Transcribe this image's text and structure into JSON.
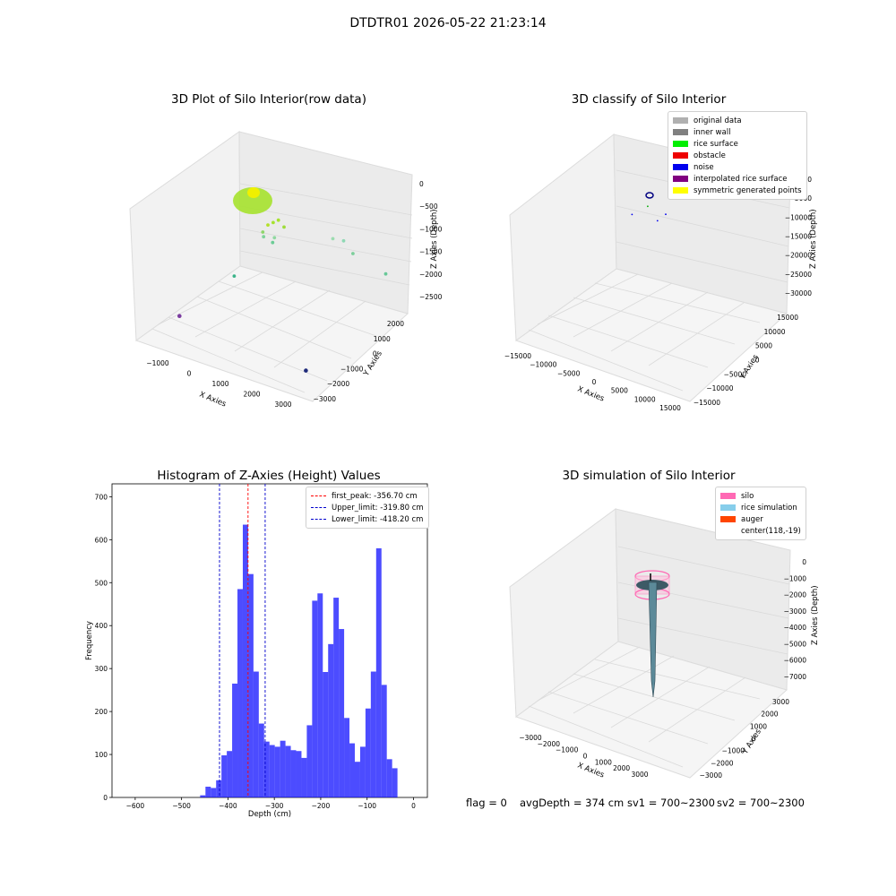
{
  "suptitle": "DTDTR01 2026-05-22 21:23:14",
  "panels": {
    "p1": {
      "title": "3D Plot of Silo Interior(row data)",
      "xlabel": "X Axies",
      "ylabel": "Y Axies",
      "zlabel": "Z Axies (Depth)",
      "xticks": [
        "−1000",
        "0",
        "1000",
        "2000",
        "3000"
      ],
      "yticks": [
        "2000",
        "1000",
        "0",
        "−1000",
        "−2000",
        "−3000"
      ],
      "zticks": [
        "0",
        "−500",
        "−1000",
        "−1500",
        "−2000",
        "−2500"
      ]
    },
    "p2": {
      "title": "3D classify of Silo Interior",
      "xlabel": "X Axies",
      "ylabel": "Y Axies",
      "zlabel": "Z Axies (Depth)",
      "xticks": [
        "−15000",
        "−10000",
        "−5000",
        "0",
        "5000",
        "10000",
        "15000"
      ],
      "yticks": [
        "15000",
        "10000",
        "5000",
        "0",
        "−5000",
        "−10000",
        "−15000"
      ],
      "zticks": [
        "0",
        "−5000",
        "−10000",
        "−15000",
        "−20000",
        "−25000",
        "−30000"
      ],
      "legend": [
        {
          "label": "original data",
          "color": "#b0b0b0"
        },
        {
          "label": "inner wall",
          "color": "#808080"
        },
        {
          "label": "rice surface",
          "color": "#00ee00"
        },
        {
          "label": "obstacle",
          "color": "#ee0000"
        },
        {
          "label": "noise",
          "color": "#0000ee"
        },
        {
          "label": "interpolated rice surface",
          "color": "#800080"
        },
        {
          "label": "symmetric generated points",
          "color": "#ffff00"
        }
      ]
    },
    "p3": {
      "title": "Histogram of Z-Axies (Height) Values",
      "xlabel": "Depth (cm)",
      "ylabel": "Frequency",
      "legend": [
        {
          "label": "first_peak: -356.70 cm",
          "color": "#ff0000"
        },
        {
          "label": "Upper_limit: -319.80 cm",
          "color": "#0000cc"
        },
        {
          "label": "Lower_limit: -418.20 cm",
          "color": "#0000cc"
        }
      ]
    },
    "p4": {
      "title": "3D simulation of Silo Interior",
      "xlabel": "X Axies",
      "ylabel": "Y Axies",
      "zlabel": "Z Axies (Depth)",
      "xticks": [
        "−3000",
        "−2000",
        "−1000",
        "0",
        "1000",
        "2000",
        "3000"
      ],
      "yticks": [
        "3000",
        "2000",
        "1000",
        "0",
        "−1000",
        "−2000",
        "−3000"
      ],
      "zticks": [
        "0",
        "−1000",
        "−2000",
        "−3000",
        "−4000",
        "−5000",
        "−6000",
        "−7000"
      ],
      "legend": [
        {
          "label": "silo",
          "color": "#ff69b4"
        },
        {
          "label": "rice simulation",
          "color": "#87ceeb"
        },
        {
          "label": "auger",
          "color": "#ff4500"
        },
        {
          "label": "center(118,-19)",
          "color": ""
        }
      ]
    }
  },
  "footer": {
    "flag": "flag = 0",
    "avg": "avgDepth = 374 cm",
    "sv1": "sv1 = 700~2300",
    "sv2": "sv2 = 700~2300"
  },
  "chart_data": [
    {
      "type": "scatter",
      "title": "3D Plot of Silo Interior(row data)",
      "xlabel": "X Axies",
      "ylabel": "Y Axies",
      "zlabel": "Z Axies (Depth)",
      "xlim": [
        -1500,
        3500
      ],
      "ylim": [
        -3200,
        2500
      ],
      "zlim": [
        -2800,
        100
      ],
      "points": [
        {
          "x": 1200,
          "y": -700,
          "z": -250
        },
        {
          "x": 1300,
          "y": -600,
          "z": -200
        },
        {
          "x": 1100,
          "y": -800,
          "z": -300
        },
        {
          "x": 1400,
          "y": -500,
          "z": -350
        },
        {
          "x": 1000,
          "y": -900,
          "z": -450
        },
        {
          "x": 1250,
          "y": -750,
          "z": -550
        },
        {
          "x": 700,
          "y": -300,
          "z": -800
        },
        {
          "x": 900,
          "y": -200,
          "z": -900
        },
        {
          "x": 2200,
          "y": 600,
          "z": -700
        },
        {
          "x": 2400,
          "y": 800,
          "z": -750
        },
        {
          "x": 2600,
          "y": 900,
          "z": -1000
        },
        {
          "x": 3200,
          "y": 1500,
          "z": -1450
        },
        {
          "x": 300,
          "y": -1200,
          "z": -1500
        },
        {
          "x": -1200,
          "y": -1400,
          "z": -2700
        },
        {
          "x": 2800,
          "y": -2200,
          "z": -2600
        }
      ]
    },
    {
      "type": "scatter",
      "title": "3D classify of Silo Interior",
      "xlabel": "X Axies",
      "ylabel": "Y Axies",
      "zlabel": "Z Axies (Depth)",
      "xlim": [
        -16000,
        16000
      ],
      "ylim": [
        -16000,
        16000
      ],
      "zlim": [
        -32000,
        1000
      ],
      "series": [
        {
          "name": "rice surface",
          "points": [
            {
              "x": 100,
              "y": 0,
              "z": -350
            }
          ]
        },
        {
          "name": "noise",
          "points": [
            {
              "x": -2000,
              "y": -1500,
              "z": -2500
            },
            {
              "x": 1500,
              "y": 500,
              "z": -3500
            },
            {
              "x": 2500,
              "y": 1500,
              "z": -2000
            }
          ]
        }
      ]
    },
    {
      "type": "bar",
      "title": "Histogram of Z-Axies (Height) Values",
      "xlabel": "Depth (cm)",
      "ylabel": "Frequency",
      "xlim": [
        -650,
        30
      ],
      "ylim": [
        0,
        730
      ],
      "bin_start": -460,
      "bin_width": 11.5,
      "values": [
        5,
        25,
        22,
        40,
        98,
        108,
        265,
        485,
        635,
        520,
        293,
        172,
        130,
        122,
        118,
        132,
        120,
        110,
        108,
        92,
        168,
        458,
        475,
        292,
        357,
        465,
        392,
        185,
        126,
        83,
        118,
        207,
        293,
        580,
        262,
        89,
        68
      ],
      "vlines": [
        {
          "label": "first_peak: -356.70 cm",
          "x": -356.7
        },
        {
          "label": "Upper_limit: -319.80 cm",
          "x": -319.8
        },
        {
          "label": "Lower_limit: -418.20 cm",
          "x": -418.2
        }
      ]
    },
    {
      "type": "area",
      "title": "3D simulation of Silo Interior",
      "xlabel": "X Axies",
      "ylabel": "Y Axies",
      "zlabel": "Z Axies (Depth)",
      "xlim": [
        -3500,
        3500
      ],
      "ylim": [
        -3500,
        3500
      ],
      "zlim": [
        -7500,
        500
      ],
      "center": [
        118,
        -19
      ],
      "silo_radius": 700,
      "silo_z": [
        -1500,
        -300
      ],
      "avg_depth_cm": 374
    }
  ]
}
